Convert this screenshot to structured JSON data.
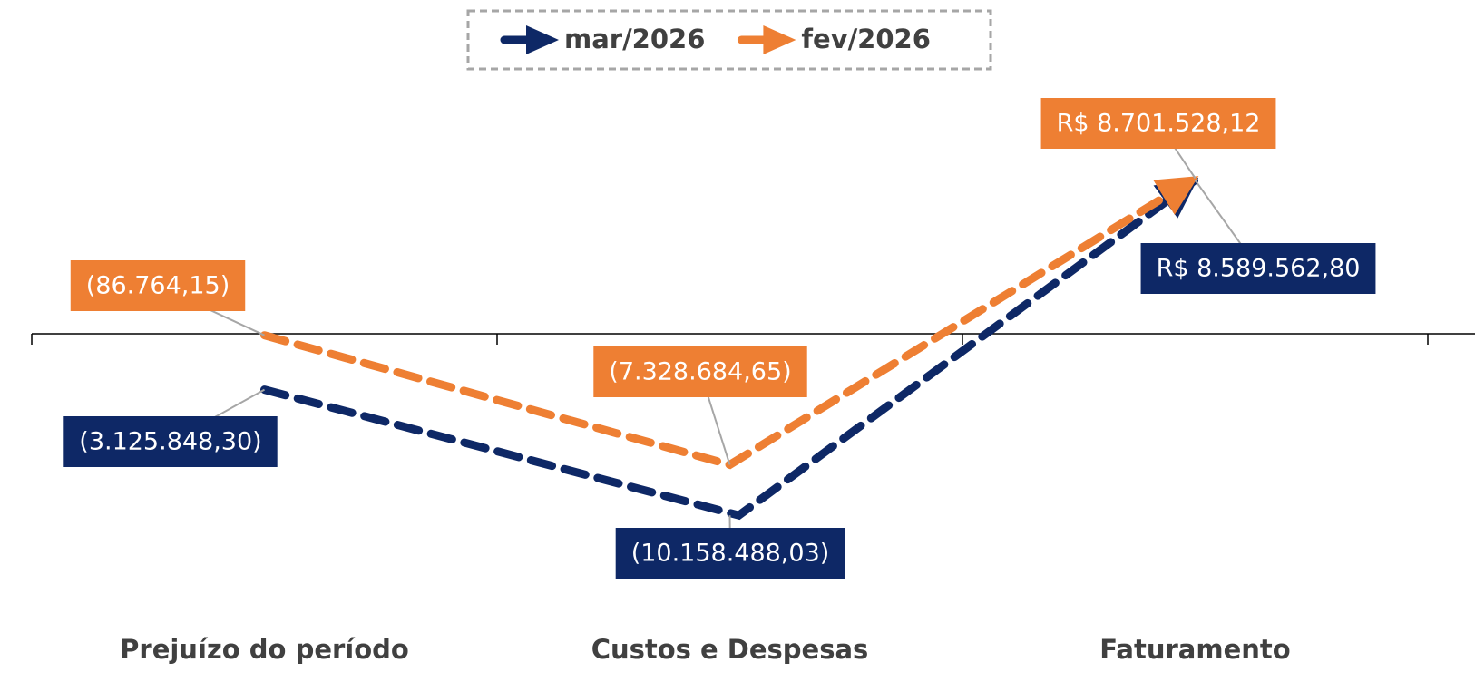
{
  "chart_data": {
    "type": "line",
    "categories": [
      "Prejuízo do período",
      "Custos e Despesas",
      "Faturamento"
    ],
    "series": [
      {
        "name": "mar/2026",
        "color": "#0e2866",
        "values": [
          -3125848.3,
          -10158488.03,
          8589562.8
        ],
        "value_labels": [
          "(3.125.848,30)",
          "(10.158.488,03)",
          "R$ 8.589.562,80"
        ]
      },
      {
        "name": "fev/2026",
        "color": "#ee7f33",
        "values": [
          -86764.15,
          -7328684.65,
          8701528.12
        ],
        "value_labels": [
          "(86.764,15)",
          "(7.328.684,65)",
          "R$ 8.701.528,12"
        ]
      }
    ],
    "ylim": [
      -14000000,
      14000000
    ],
    "legend": "top"
  }
}
